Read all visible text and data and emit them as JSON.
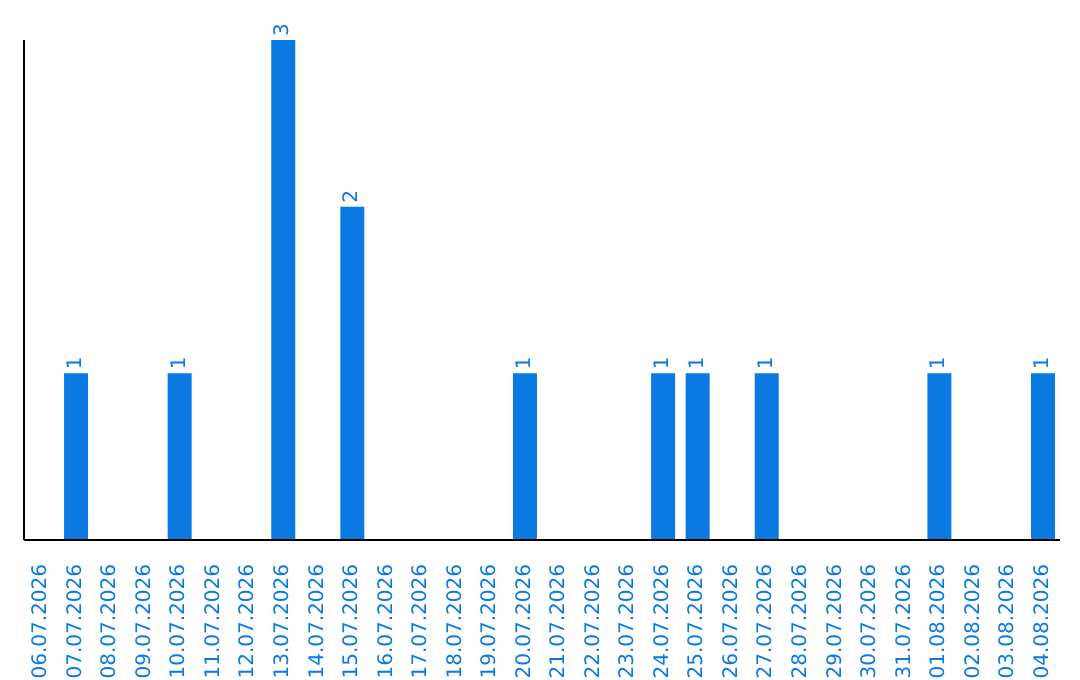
{
  "chart_data": {
    "type": "bar",
    "categories": [
      "06.07.2026",
      "07.07.2026",
      "08.07.2026",
      "09.07.2026",
      "10.07.2026",
      "11.07.2026",
      "12.07.2026",
      "13.07.2026",
      "14.07.2026",
      "15.07.2026",
      "16.07.2026",
      "17.07.2026",
      "18.07.2026",
      "19.07.2026",
      "20.07.2026",
      "21.07.2026",
      "22.07.2026",
      "23.07.2026",
      "24.07.2026",
      "25.07.2026",
      "26.07.2026",
      "27.07.2026",
      "28.07.2026",
      "29.07.2026",
      "30.07.2026",
      "31.07.2026",
      "01.08.2026",
      "02.08.2026",
      "03.08.2026",
      "04.08.2026"
    ],
    "values": [
      0,
      1,
      0,
      0,
      1,
      0,
      0,
      3,
      0,
      2,
      0,
      0,
      0,
      0,
      1,
      0,
      0,
      0,
      1,
      1,
      0,
      1,
      0,
      0,
      0,
      0,
      1,
      0,
      0,
      1
    ],
    "value_labels": [
      null,
      "1",
      null,
      null,
      "1",
      null,
      null,
      "3",
      null,
      "2",
      null,
      null,
      null,
      null,
      "1",
      null,
      null,
      null,
      "1",
      "1",
      null,
      "1",
      null,
      null,
      null,
      null,
      "1",
      null,
      null,
      "1"
    ],
    "color": "#0a7ae2",
    "grid": false,
    "legend": false
  }
}
